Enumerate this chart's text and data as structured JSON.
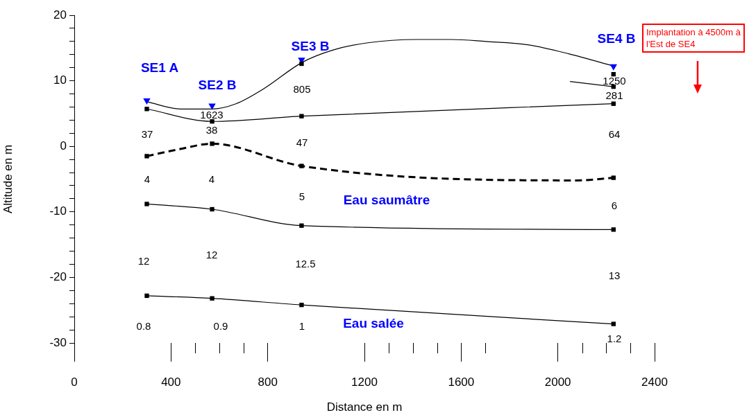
{
  "chart_data": {
    "type": "line",
    "xlabel": "Distance en m",
    "ylabel": "Altitude en m",
    "xlim": [
      0,
      2400
    ],
    "xticks": [
      0,
      400,
      800,
      1200,
      1600,
      2000,
      2400,
      {
        "value": 500,
        "label": null
      },
      {
        "value": 600,
        "label": null
      },
      {
        "value": 700,
        "label": null
      },
      {
        "value": 1300,
        "label": null
      },
      {
        "value": 1400,
        "label": null
      },
      {
        "value": 1500,
        "label": null
      },
      {
        "value": 1700,
        "label": null
      },
      {
        "value": 2100,
        "label": null
      },
      {
        "value": 2200,
        "label": null
      },
      {
        "value": 2300,
        "label": null
      }
    ],
    "ylim": [
      -30,
      20
    ],
    "yticks": [
      -30,
      -20,
      -10,
      0,
      10,
      20,
      {
        "value": -28,
        "label": null
      },
      {
        "value": -26,
        "label": null
      },
      {
        "value": -24,
        "label": null
      },
      {
        "value": -22,
        "label": null
      },
      {
        "value": -18,
        "label": null
      },
      {
        "value": -16,
        "label": null
      },
      {
        "value": -14,
        "label": null
      },
      {
        "value": -12,
        "label": null
      },
      {
        "value": -8,
        "label": null
      },
      {
        "value": -6,
        "label": null
      },
      {
        "value": -4,
        "label": null
      },
      {
        "value": -2,
        "label": null
      },
      {
        "value": 2,
        "label": null
      },
      {
        "value": 4,
        "label": null
      },
      {
        "value": 6,
        "label": null
      },
      {
        "value": 8,
        "label": null
      },
      {
        "value": 12,
        "label": null
      },
      {
        "value": 14,
        "label": null
      },
      {
        "value": 16,
        "label": null
      },
      {
        "value": 18,
        "label": null
      }
    ],
    "series": [
      {
        "color": "#000000",
        "marker": "none",
        "x": [
          301,
          439,
          568,
          669,
          784,
          942,
          1071,
          1214,
          1415,
          1559,
          1703,
          1875,
          2047,
          2234
        ],
        "values": [
          6.8,
          5.7,
          5.7,
          6.5,
          8.8,
          12.8,
          14.7,
          15.8,
          16.3,
          16.3,
          16.0,
          15.5,
          14.1,
          12.2
        ]
      },
      {
        "color": "#000000",
        "marker": "none",
        "x": [
          300,
          570,
          940,
          2230
        ],
        "values": [
          5.7,
          3.8,
          4.6,
          6.5
        ]
      },
      {
        "color": "#000000",
        "marker": "none",
        "x": [
          2050,
          2230
        ],
        "values": [
          9.9,
          9.1
        ]
      },
      {
        "color": "#000000",
        "marker": "none",
        "line_style": "dashed",
        "x": [
          300,
          439,
          570,
          940,
          2076,
          2230
        ],
        "values": [
          -1.5,
          -0.4,
          0.4,
          -3.0,
          -5.2,
          -4.8
        ]
      },
      {
        "color": "#000000",
        "marker": "none",
        "x": [
          300,
          570,
          940,
          2230
        ],
        "values": [
          -8.8,
          -9.6,
          -12.1,
          -12.7
        ]
      },
      {
        "color": "#000000",
        "marker": "none",
        "x": [
          300,
          570,
          940,
          2230
        ],
        "values": [
          -22.8,
          -23.2,
          -24.2,
          -27.1
        ]
      },
      {
        "type": "scatter",
        "color": "#000000",
        "marker": "square",
        "x": [
          300,
          570,
          940,
          2230,
          940,
          2230,
          2230,
          300,
          570,
          940,
          2230,
          300,
          570,
          940,
          2230,
          300,
          570,
          940,
          2230
        ],
        "values": [
          5.7,
          3.8,
          4.6,
          6.5,
          12.6,
          11.0,
          9.1,
          -1.5,
          0.4,
          -3.0,
          -4.8,
          -8.8,
          -9.6,
          -12.1,
          -12.7,
          -22.8,
          -23.2,
          -24.2,
          -27.1
        ]
      },
      {
        "type": "scatter",
        "color": "#0000ff",
        "marker": "triangle",
        "x": [
          300,
          570,
          940,
          2230
        ],
        "values": [
          7.0,
          6.2,
          13.2,
          12.2
        ]
      }
    ],
    "annotations": [
      "SE1 A",
      "SE2 B",
      "SE3 B",
      "SE4 B",
      "1623",
      "805",
      "1250",
      "281",
      "37",
      "38",
      "47",
      "64",
      "4",
      "4",
      "5",
      "6",
      "Eau saumâtre",
      "12",
      "12",
      "12.5",
      "13",
      "0.8",
      "0.9",
      "1",
      "Eau salée",
      "1.2",
      "Implantation à 4500m à l'Est de SE4"
    ]
  }
}
